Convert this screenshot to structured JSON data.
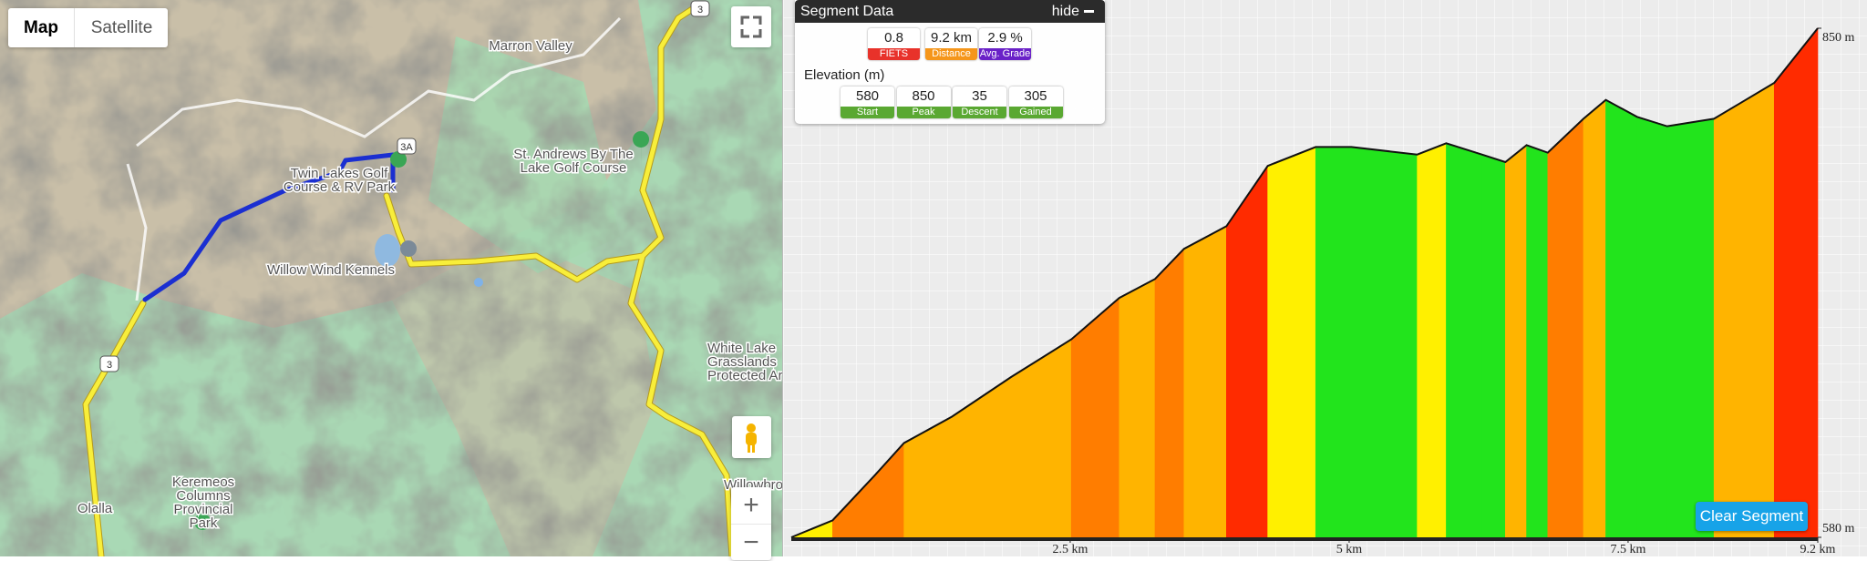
{
  "map": {
    "type_buttons": [
      "Map",
      "Satellite"
    ],
    "labels": [
      [
        "Marron Valley"
      ],
      [
        "Twin Lakes Golf",
        "Course & RV Park"
      ],
      [
        "St. Andrews By The",
        "Lake Golf Course"
      ],
      [
        "Willow Wind Kennels"
      ],
      [
        "White Lake",
        "Grasslands",
        "Protected Ar"
      ],
      [
        "Keremeos",
        "Columns",
        "Provincial",
        "Park"
      ],
      [
        "Olalla"
      ],
      [
        "Willowbro"
      ]
    ],
    "shields": [
      "3A",
      "3",
      "3"
    ],
    "zoom": [
      "+",
      "−"
    ]
  },
  "segment_panel": {
    "title": "Segment Data",
    "hide": "hide",
    "stats": [
      {
        "value": 0.8,
        "label": "FIETS"
      },
      {
        "value": "9.2 km",
        "label": "Distance"
      },
      {
        "value": "2.9 %",
        "label": "Avg. Grade"
      }
    ],
    "elevation_title": "Elevation (m)",
    "elevation": [
      {
        "value": 580,
        "label": "Start"
      },
      {
        "value": 850,
        "label": "Peak"
      },
      {
        "value": 35,
        "label": "Descent"
      },
      {
        "value": 305,
        "label": "Gained"
      }
    ]
  },
  "chart_data": {
    "type": "area",
    "x": [
      0,
      0.37,
      0.75,
      1.01,
      1.44,
      1.97,
      2.51,
      2.94,
      3.26,
      3.52,
      3.9,
      4.27,
      4.7,
      5.02,
      5.61,
      5.87,
      6.19,
      6.4,
      6.59,
      6.78,
      7.1,
      7.3,
      7.58,
      7.85,
      8.27,
      8.81,
      9.2
    ],
    "values": [
      580,
      589,
      613,
      630,
      644,
      665,
      685,
      707,
      717,
      733,
      745,
      777,
      787,
      787,
      783,
      789,
      783,
      779,
      788,
      784,
      802,
      812,
      803,
      798,
      802,
      821,
      850
    ],
    "xlim": [
      0,
      9.2
    ],
    "ylim": [
      580,
      850
    ],
    "xticks": [
      {
        "value": 2.5,
        "label": "2.5 km"
      },
      {
        "value": 5,
        "label": "5 km"
      },
      {
        "value": 7.5,
        "label": "7.5 km"
      },
      {
        "value": 9.2,
        "label": "9.2 km"
      }
    ],
    "yticks": [
      {
        "value": 580,
        "label": "580 m"
      },
      {
        "value": 850,
        "label": "850 m"
      }
    ],
    "button": "Clear Segment"
  }
}
